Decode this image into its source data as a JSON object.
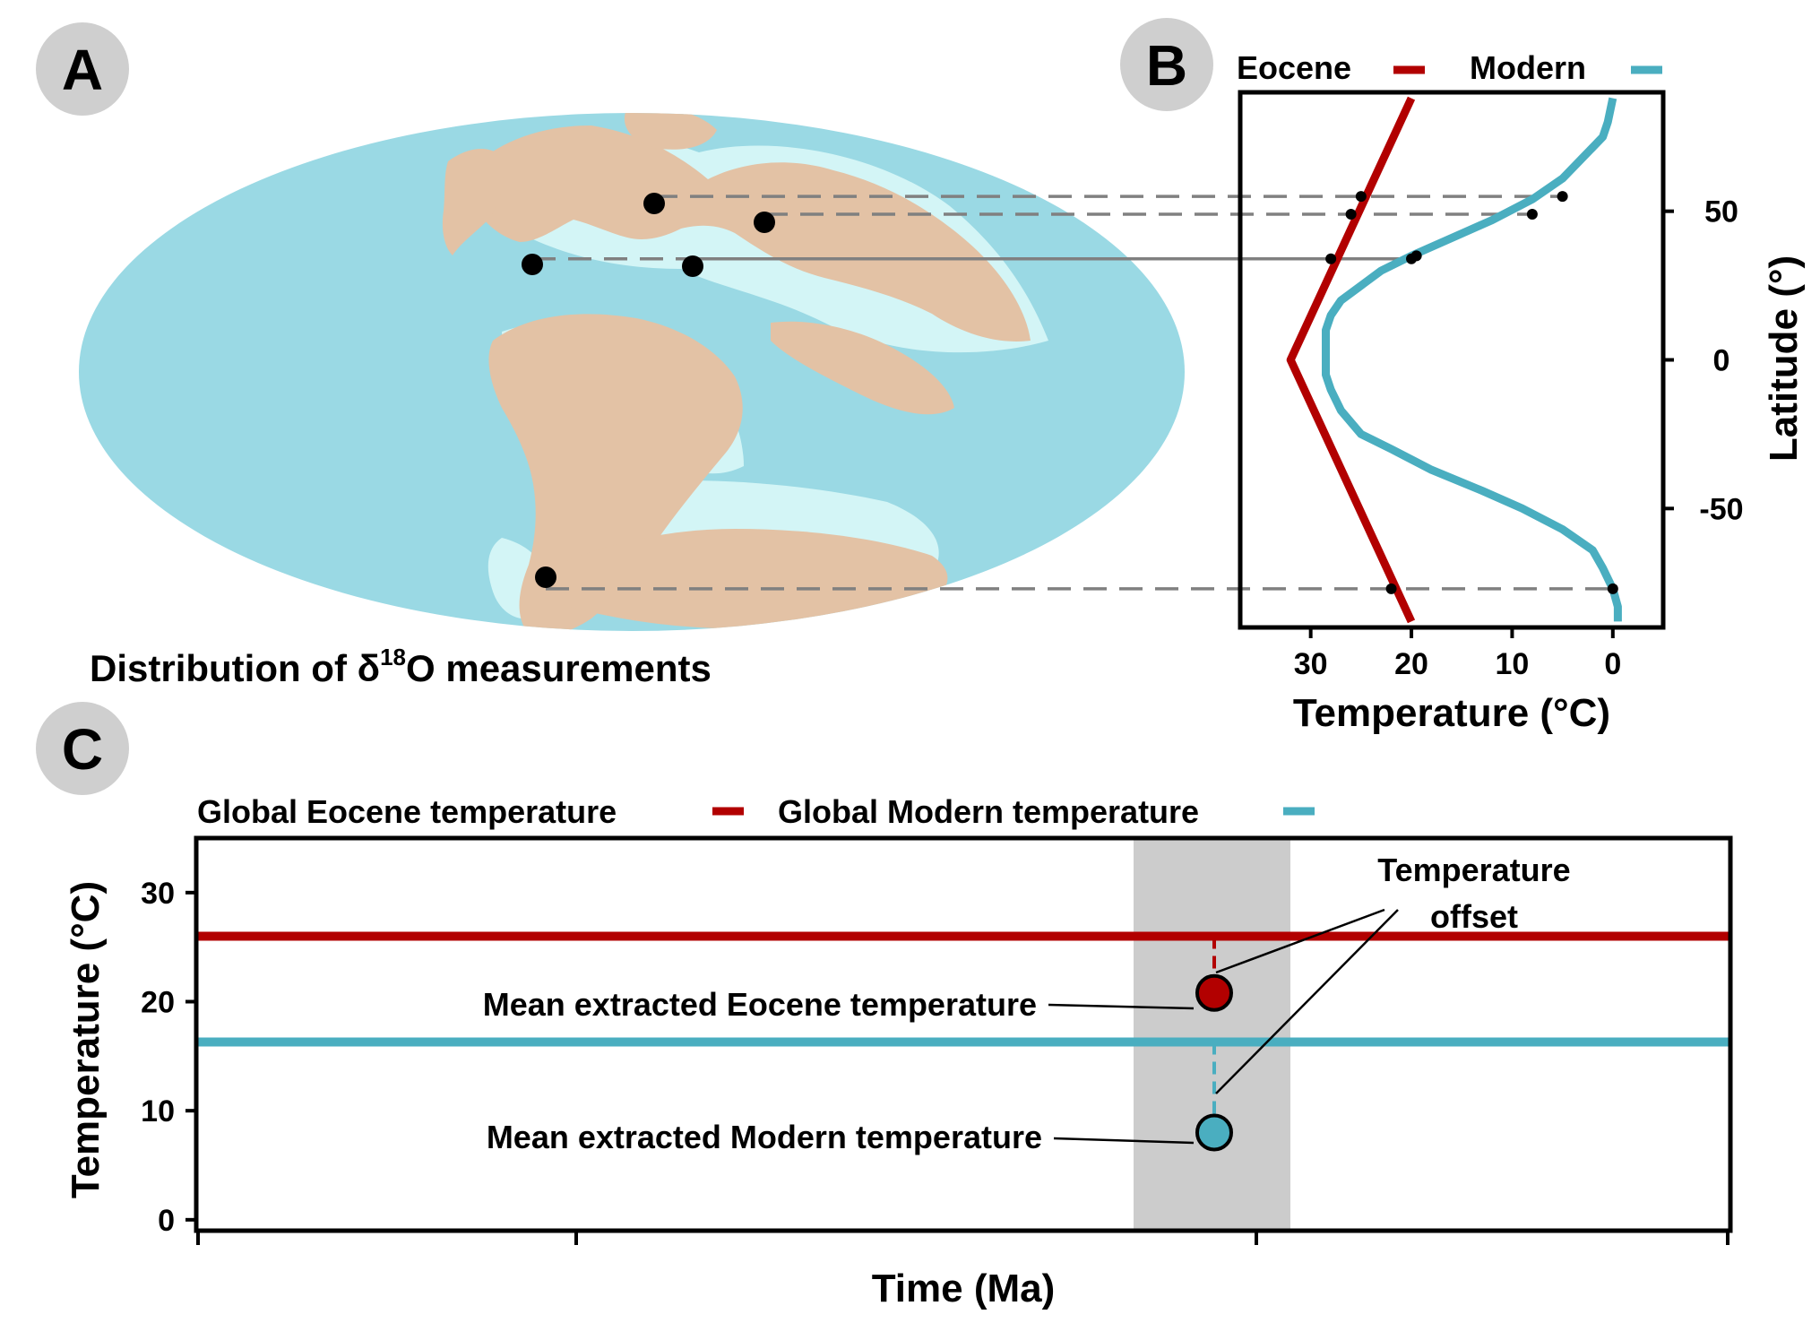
{
  "colors": {
    "eocene": "#b20000",
    "modern": "#4aaec0",
    "ocean": "#9ad9e4",
    "shelf": "#d3f5f6",
    "land": "#e3c2a5",
    "guide": "#808080",
    "highlight_band": "#cccccc"
  },
  "panel_a": {
    "letter": "A",
    "caption_prefix": "Distribution of δ",
    "caption_superscript": "18",
    "caption_suffix": "O measurements",
    "site_latitudes": [
      55,
      49,
      34,
      34,
      -77
    ]
  },
  "panel_b": {
    "letter": "B",
    "legend": [
      {
        "name": "Eocene",
        "color_key": "eocene"
      },
      {
        "name": "Modern",
        "color_key": "modern"
      }
    ]
  },
  "panel_c": {
    "letter": "C",
    "legend": [
      {
        "name": "Global Eocene temperature",
        "color_key": "eocene"
      },
      {
        "name": "Global Modern temperature",
        "color_key": "modern"
      }
    ],
    "annotation_offset_line1": "Temperature",
    "annotation_offset_line2": "offset",
    "annotation_eocene_mean": "Mean extracted Eocene temperature",
    "annotation_modern_mean": "Mean extracted Modern temperature"
  },
  "chart_data": [
    {
      "type": "line",
      "panel": "B",
      "title": "",
      "xlabel": "Temperature (°C)",
      "ylabel": "Latitude (°)",
      "x_reversed": true,
      "xlim": [
        37,
        -5
      ],
      "ylim": [
        -90,
        90
      ],
      "xticks": [
        30,
        20,
        10,
        0
      ],
      "yticks": [
        50,
        0,
        -50
      ],
      "ytick_side": "right",
      "series": [
        {
          "name": "Eocene",
          "color_key": "eocene",
          "points": [
            [
              20,
              88
            ],
            [
              32,
              0
            ],
            [
              20,
              -88
            ]
          ]
        },
        {
          "name": "Modern",
          "color_key": "modern",
          "points": [
            [
              0,
              88
            ],
            [
              0.5,
              80
            ],
            [
              1,
              75
            ],
            [
              3,
              68
            ],
            [
              5,
              61
            ],
            [
              8,
              54
            ],
            [
              12,
              47
            ],
            [
              16,
              41
            ],
            [
              20,
              35
            ],
            [
              23,
              30
            ],
            [
              25,
              25
            ],
            [
              27,
              20
            ],
            [
              28,
              15
            ],
            [
              28.5,
              10
            ],
            [
              28.5,
              5
            ],
            [
              28.5,
              0
            ],
            [
              28.5,
              -5
            ],
            [
              28,
              -10
            ],
            [
              27,
              -17
            ],
            [
              25,
              -25
            ],
            [
              22,
              -30
            ],
            [
              18,
              -37
            ],
            [
              13,
              -44
            ],
            [
              9,
              -50
            ],
            [
              5,
              -57
            ],
            [
              2,
              -64
            ],
            [
              1,
              -70
            ],
            [
              0,
              -77
            ],
            [
              -0.5,
              -83
            ],
            [
              -0.5,
              -88
            ]
          ]
        }
      ],
      "markers": [
        {
          "series": "Eocene",
          "points": [
            [
              25,
              55
            ],
            [
              26,
              49
            ],
            [
              28,
              34
            ],
            [
              22,
              -77
            ]
          ]
        },
        {
          "series": "Modern",
          "points": [
            [
              5,
              55
            ],
            [
              8,
              49
            ],
            [
              20,
              34
            ],
            [
              19.5,
              35
            ],
            [
              0,
              -77
            ]
          ]
        }
      ]
    },
    {
      "type": "line",
      "panel": "C",
      "title": "",
      "xlabel": "Time (Ma)",
      "ylabel": "Temperature (°C)",
      "ylim": [
        -1,
        35
      ],
      "yticks": [
        0,
        10,
        20,
        30
      ],
      "x_tick_labels": [],
      "series": [
        {
          "name": "Global Eocene temperature",
          "color_key": "eocene",
          "value": 26
        },
        {
          "name": "Global Modern temperature",
          "color_key": "modern",
          "value": 16.3
        }
      ],
      "points": [
        {
          "name": "Mean extracted Eocene temperature",
          "color_key": "eocene",
          "value": 20.8
        },
        {
          "name": "Mean extracted Modern temperature",
          "color_key": "modern",
          "value": 8
        }
      ]
    }
  ]
}
